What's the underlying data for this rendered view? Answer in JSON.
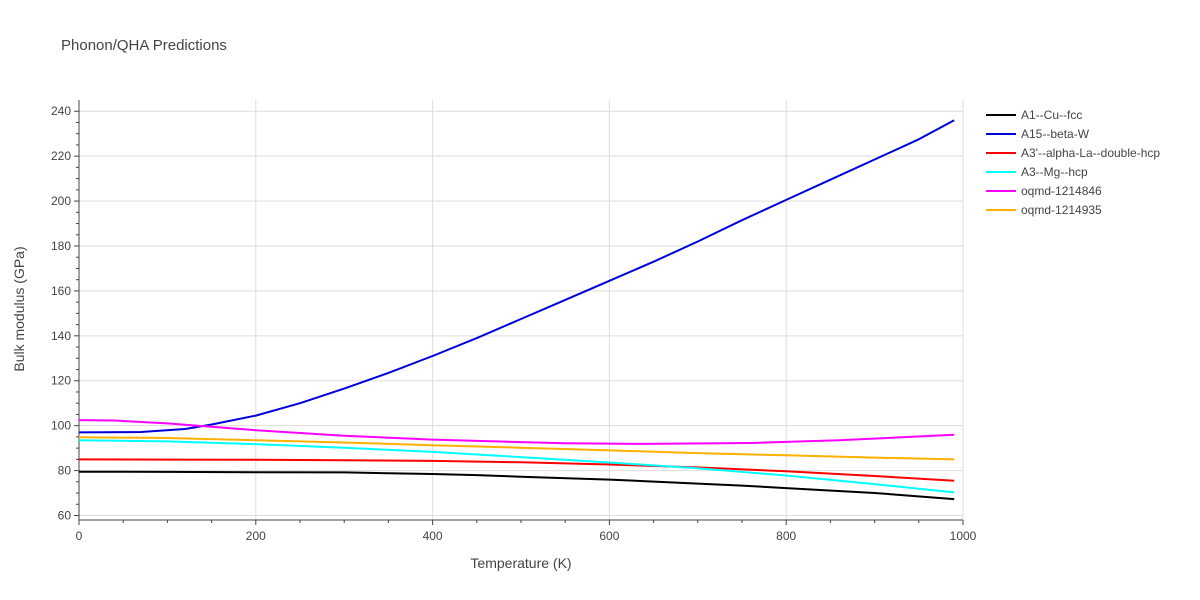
{
  "chart_data": {
    "type": "line",
    "title": "Phonon/QHA Predictions",
    "xlabel": "Temperature (K)",
    "ylabel": "Bulk modulus (GPa)",
    "xlim": [
      0,
      1000
    ],
    "ylim": [
      58,
      245
    ],
    "xticks": [
      0,
      200,
      400,
      600,
      800,
      1000
    ],
    "yticks": [
      60,
      80,
      100,
      120,
      140,
      160,
      180,
      200,
      220,
      240
    ],
    "grid": true,
    "legend_position": "top-right",
    "series": [
      {
        "name": "A1--Cu--fcc",
        "color": "#000000",
        "x": [
          0,
          100,
          200,
          300,
          400,
          450,
          500,
          600,
          700,
          750,
          800,
          900,
          990
        ],
        "y": [
          79.5,
          79.4,
          79.3,
          79.2,
          78.5,
          78.0,
          77.3,
          76.0,
          74.2,
          73.3,
          72.2,
          70.0,
          67.3
        ]
      },
      {
        "name": "A15--beta-W",
        "color": "#0000dd",
        "x": [
          0,
          70,
          120,
          150,
          200,
          250,
          300,
          350,
          400,
          450,
          500,
          550,
          600,
          650,
          700,
          750,
          800,
          850,
          900,
          950,
          990
        ],
        "y": [
          97.0,
          97.2,
          98.5,
          100.5,
          104.5,
          110.0,
          116.5,
          123.5,
          131.0,
          139.0,
          147.5,
          156.0,
          164.5,
          173.0,
          182.0,
          191.5,
          200.5,
          209.5,
          218.5,
          227.5,
          236.0
        ]
      },
      {
        "name": "A3'--alpha-La--double-hcp",
        "color": "#ff0000",
        "x": [
          0,
          100,
          200,
          300,
          400,
          500,
          600,
          700,
          800,
          900,
          990
        ],
        "y": [
          85.0,
          84.9,
          84.8,
          84.6,
          84.3,
          83.7,
          82.7,
          81.4,
          79.7,
          77.6,
          75.5
        ]
      },
      {
        "name": "A3--Mg--hcp",
        "color": "#00ffff",
        "x": [
          0,
          100,
          200,
          300,
          400,
          500,
          600,
          700,
          800,
          900,
          990
        ],
        "y": [
          93.5,
          93.0,
          91.8,
          90.2,
          88.3,
          86.0,
          83.6,
          81.0,
          77.8,
          74.0,
          70.3
        ]
      },
      {
        "name": "oqmd-1214846",
        "color": "#ff00ff",
        "x": [
          0,
          40,
          100,
          200,
          300,
          400,
          500,
          550,
          640,
          760,
          860,
          990
        ],
        "y": [
          102.5,
          102.3,
          101.0,
          98.0,
          95.5,
          93.8,
          92.7,
          92.2,
          91.9,
          92.3,
          93.5,
          96.0
        ]
      },
      {
        "name": "oqmd-1214935",
        "color": "#ffb000",
        "x": [
          0,
          100,
          200,
          300,
          400,
          500,
          600,
          700,
          800,
          900,
          990
        ],
        "y": [
          94.8,
          94.5,
          93.5,
          92.5,
          91.3,
          90.2,
          89.0,
          87.8,
          86.8,
          85.8,
          85.0
        ]
      }
    ]
  }
}
